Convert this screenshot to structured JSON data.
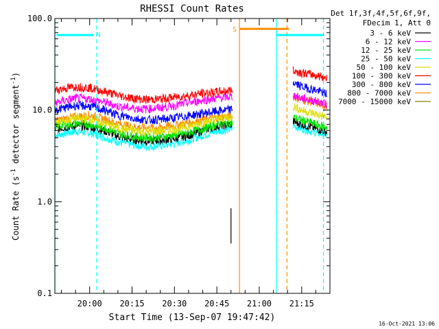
{
  "chart_data": {
    "type": "line",
    "title": "RHESSI Count Rates",
    "xlabel": "Start Time (13-Sep-07 19:47:42)",
    "ylabel_main": "Count Rate (s",
    "ylabel_sup1": "-1",
    "ylabel_mid": " detector segment",
    "ylabel_sup2": "-1",
    "ylabel_end": ")",
    "yscale": "log",
    "ylim": [
      0.1,
      100.0
    ],
    "xlim_min": [
      1187.7,
      1285.0
    ],
    "yticks": [
      {
        "value": 0.1,
        "label": "0.1"
      },
      {
        "value": 1.0,
        "label": "1.0"
      },
      {
        "value": 10.0,
        "label": "10.0"
      },
      {
        "value": 100.0,
        "label": "100.0"
      }
    ],
    "xticks": [
      {
        "value": 1200,
        "label": "20:00"
      },
      {
        "value": 1215,
        "label": "20:15"
      },
      {
        "value": 1230,
        "label": "20:30"
      },
      {
        "value": 1245,
        "label": "20:45"
      },
      {
        "value": 1260,
        "label": "21:00"
      },
      {
        "value": 1275,
        "label": "21:15"
      }
    ],
    "legend_header": [
      "Det 1f,3f,4f,5f,6f,9f,",
      "FDecim 1, Att 0"
    ],
    "footer_date": "16-Oct-2021 13:06",
    "series": [
      {
        "name": "3 - 6 keV",
        "color": "#000000",
        "segment1": {
          "x": [
            1187.7,
            1195,
            1200,
            1205,
            1210,
            1215,
            1220,
            1225,
            1230,
            1235,
            1240,
            1245,
            1250.5
          ],
          "y": [
            6.2,
            6.8,
            6.6,
            6.0,
            5.2,
            4.8,
            4.6,
            4.7,
            4.9,
            5.3,
            6.0,
            6.7,
            7.0
          ]
        },
        "segment2": {
          "x": [
            1272,
            1275,
            1280,
            1284
          ],
          "y": [
            7.5,
            7.0,
            6.3,
            5.8
          ]
        }
      },
      {
        "name": "6 - 12 keV",
        "color": "#ff00ff",
        "segment1": {
          "x": [
            1187.7,
            1195,
            1200,
            1205,
            1210,
            1215,
            1220,
            1225,
            1230,
            1235,
            1240,
            1245,
            1250.5
          ],
          "y": [
            12.0,
            13.5,
            13.2,
            12.2,
            11.0,
            10.5,
            10.3,
            10.6,
            11.2,
            12.0,
            12.8,
            13.5,
            14.0
          ]
        },
        "segment2": {
          "x": [
            1272,
            1275,
            1280,
            1284
          ],
          "y": [
            14.5,
            13.5,
            12.5,
            11.5
          ]
        }
      },
      {
        "name": "12 - 25 keV",
        "color": "#00e600",
        "segment1": {
          "x": [
            1187.7,
            1195,
            1200,
            1205,
            1210,
            1215,
            1220,
            1225,
            1230,
            1235,
            1240,
            1245,
            1250.5
          ],
          "y": [
            6.6,
            7.2,
            7.0,
            6.4,
            5.6,
            5.2,
            5.0,
            5.1,
            5.3,
            5.7,
            6.3,
            7.0,
            7.3
          ]
        },
        "segment2": {
          "x": [
            1272,
            1275,
            1280,
            1284
          ],
          "y": [
            8.3,
            7.8,
            7.0,
            6.5
          ]
        }
      },
      {
        "name": "25 - 50 keV",
        "color": "#00ffff",
        "segment1": {
          "x": [
            1187.7,
            1195,
            1200,
            1205,
            1210,
            1215,
            1220,
            1225,
            1230,
            1235,
            1240,
            1245,
            1250.5
          ],
          "y": [
            5.3,
            5.9,
            5.7,
            5.1,
            4.5,
            4.2,
            4.0,
            4.1,
            4.3,
            4.7,
            5.3,
            5.9,
            6.2
          ]
        },
        "segment2": {
          "x": [
            1272,
            1275,
            1280,
            1284
          ],
          "y": [
            6.8,
            6.3,
            5.7,
            5.3
          ]
        }
      },
      {
        "name": "50 - 100 keV",
        "color": "#dddd00",
        "segment1": {
          "x": [
            1187.7,
            1195,
            1200,
            1205,
            1210,
            1215,
            1220,
            1225,
            1230,
            1235,
            1240,
            1245,
            1250.5
          ],
          "y": [
            7.2,
            8.2,
            8.0,
            7.2,
            6.4,
            6.0,
            5.8,
            5.9,
            6.2,
            6.7,
            7.3,
            8.0,
            8.4
          ]
        },
        "segment2": {
          "x": [
            1272,
            1275,
            1280,
            1284
          ],
          "y": [
            11.0,
            10.0,
            9.0,
            8.3
          ]
        }
      },
      {
        "name": "100 - 300 keV",
        "color": "#ff0000",
        "segment1": {
          "x": [
            1187.7,
            1195,
            1200,
            1205,
            1210,
            1215,
            1220,
            1225,
            1230,
            1235,
            1240,
            1245,
            1250.5
          ],
          "y": [
            16.5,
            18.0,
            17.5,
            16.0,
            14.5,
            13.5,
            13.0,
            13.2,
            13.8,
            14.5,
            15.2,
            15.8,
            16.5
          ]
        },
        "segment2": {
          "x": [
            1272,
            1275,
            1280,
            1284
          ],
          "y": [
            27.0,
            25.5,
            24.0,
            22.5
          ]
        }
      },
      {
        "name": "300 - 800 keV",
        "color": "#0000ff",
        "segment1": {
          "x": [
            1187.7,
            1195,
            1200,
            1205,
            1210,
            1215,
            1220,
            1225,
            1230,
            1235,
            1240,
            1245,
            1250.5
          ],
          "y": [
            10.0,
            11.2,
            11.0,
            10.0,
            8.8,
            8.2,
            7.8,
            7.9,
            8.2,
            8.7,
            9.2,
            9.7,
            10.2
          ]
        },
        "segment2": {
          "x": [
            1272,
            1275,
            1280,
            1284
          ],
          "y": [
            20.0,
            18.0,
            16.5,
            15.0
          ]
        }
      },
      {
        "name": "800 - 7000 keV",
        "color": "#ff8c00",
        "segment1": {
          "x": [
            1187.7,
            1195,
            1200,
            1205,
            1210,
            1215,
            1220,
            1225,
            1230,
            1235,
            1240,
            1245,
            1250.5
          ],
          "y": [
            7.6,
            8.5,
            8.8,
            8.0,
            7.1,
            6.6,
            6.4,
            6.5,
            6.8,
            7.3,
            7.8,
            8.3,
            8.6
          ]
        },
        "segment2": {
          "x": [
            1272,
            1275,
            1280,
            1284
          ],
          "y": [
            14.0,
            13.0,
            12.0,
            11.0
          ]
        }
      },
      {
        "name": "7000 - 15000 keV",
        "color": "#808000",
        "segment1": {
          "x": [
            1187.7,
            1195,
            1200,
            1205,
            1210,
            1215,
            1220,
            1225,
            1230,
            1235,
            1240,
            1245,
            1250.5
          ],
          "y": [
            6.8,
            7.5,
            7.3,
            6.6,
            5.9,
            5.5,
            5.3,
            5.4,
            5.6,
            6.1,
            6.6,
            7.2,
            7.5
          ]
        },
        "segment2": {
          "x": [
            1272,
            1275,
            1280,
            1284
          ],
          "y": [
            9.5,
            8.8,
            8.0,
            7.4
          ]
        }
      }
    ],
    "annotations": [
      {
        "type": "vline",
        "x": 1187.7,
        "color": "#00ffff",
        "style": "solid"
      },
      {
        "type": "vline",
        "x": 1202.5,
        "color": "#00ffff",
        "style": "dashed"
      },
      {
        "type": "vline",
        "x": 1253.0,
        "color": "#ff8c00",
        "style": "solid"
      },
      {
        "type": "vline",
        "x": 1266.1,
        "color": "#00ffff",
        "style": "solid"
      },
      {
        "type": "vline",
        "x": 1269.8,
        "color": "#ff8c00",
        "style": "dashed"
      },
      {
        "type": "vline",
        "x": 1282.7,
        "color": "#00ffff",
        "style": "dashed"
      },
      {
        "type": "bar",
        "x0": 1188.3,
        "x1": 1201.4,
        "y": 66.0,
        "color": "#00ffff",
        "label": "N"
      },
      {
        "type": "bar",
        "x0": 1253.0,
        "x1": 1270.5,
        "y": 77.0,
        "color": "#ff8c00",
        "label": "S"
      },
      {
        "type": "bar",
        "x0": 1266.1,
        "x1": 1282.7,
        "y": 66.0,
        "color": "#00ffff",
        "label": ""
      },
      {
        "type": "spike",
        "x": 1250.0,
        "y0": 0.35,
        "y1": 0.85,
        "color": "#000000"
      }
    ]
  }
}
